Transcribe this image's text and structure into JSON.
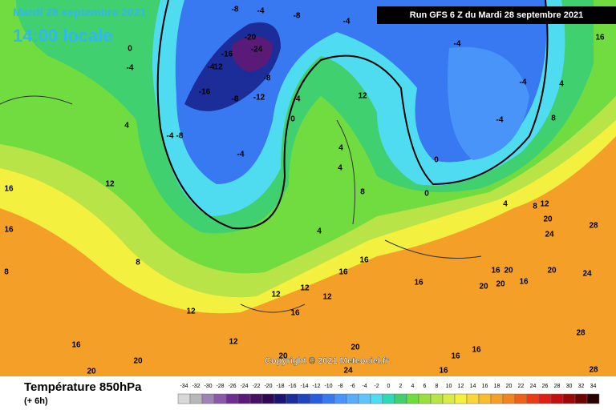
{
  "header": {
    "date": "Mardi 28 septembre 2021",
    "time": "14:00 locale",
    "run": "Run GFS 6 Z du Mardi 28 septembre 2021"
  },
  "footer": {
    "title": "Température 850hPa",
    "lead": "(+ 6h)",
    "copyright": "Copyright © 2021 Meteociel.fr"
  },
  "colorbar": {
    "ticks": [
      -34,
      -32,
      -30,
      -28,
      -26,
      -24,
      -22,
      -20,
      -18,
      -16,
      -14,
      -12,
      -10,
      -8,
      -6,
      -4,
      -2,
      0,
      2,
      4,
      6,
      8,
      10,
      12,
      14,
      16,
      18,
      20,
      22,
      24,
      26,
      28,
      30,
      32,
      34
    ],
    "colors": [
      "#d8d8d8",
      "#b8b8b8",
      "#9c84b4",
      "#8a5aa8",
      "#6e3090",
      "#5a1a78",
      "#481060",
      "#300a50",
      "#1a1470",
      "#1c2c98",
      "#2044c0",
      "#2a5ce0",
      "#3878f0",
      "#4894f8",
      "#58acf8",
      "#60c4f8",
      "#50dcf0",
      "#30d8b8",
      "#40d070",
      "#70dc40",
      "#98e040",
      "#b8e448",
      "#d8ec48",
      "#f4f040",
      "#f8d838",
      "#f8bc30",
      "#f4a028",
      "#f08420",
      "#ec6018",
      "#e83c18",
      "#dc2018",
      "#c01010",
      "#9c0808",
      "#6c0404",
      "#280000"
    ]
  },
  "contour_labels": [
    "-8",
    "-4",
    "-8",
    "-4",
    "-20",
    "-24",
    "-16",
    "-4",
    "12",
    "-8",
    "-16",
    "-8",
    "-12",
    "-4",
    "0",
    "-4",
    "-8",
    "-4",
    "4",
    "0",
    "-4",
    "12",
    "-4",
    "-4",
    "-4",
    "4",
    "8",
    "16",
    "0",
    "0",
    "4",
    "8",
    "12",
    "20",
    "24",
    "28",
    "16",
    "20",
    "16",
    "20",
    "24",
    "20",
    "20",
    "28",
    "28",
    "16",
    "16",
    "16",
    "20",
    "20",
    "24",
    "20",
    "20",
    "16",
    "12",
    "12",
    "8",
    "12",
    "16",
    "16",
    "8",
    "16",
    "16",
    "16",
    "12",
    "12",
    "16",
    "12",
    "4",
    "8",
    "4",
    "4"
  ]
}
